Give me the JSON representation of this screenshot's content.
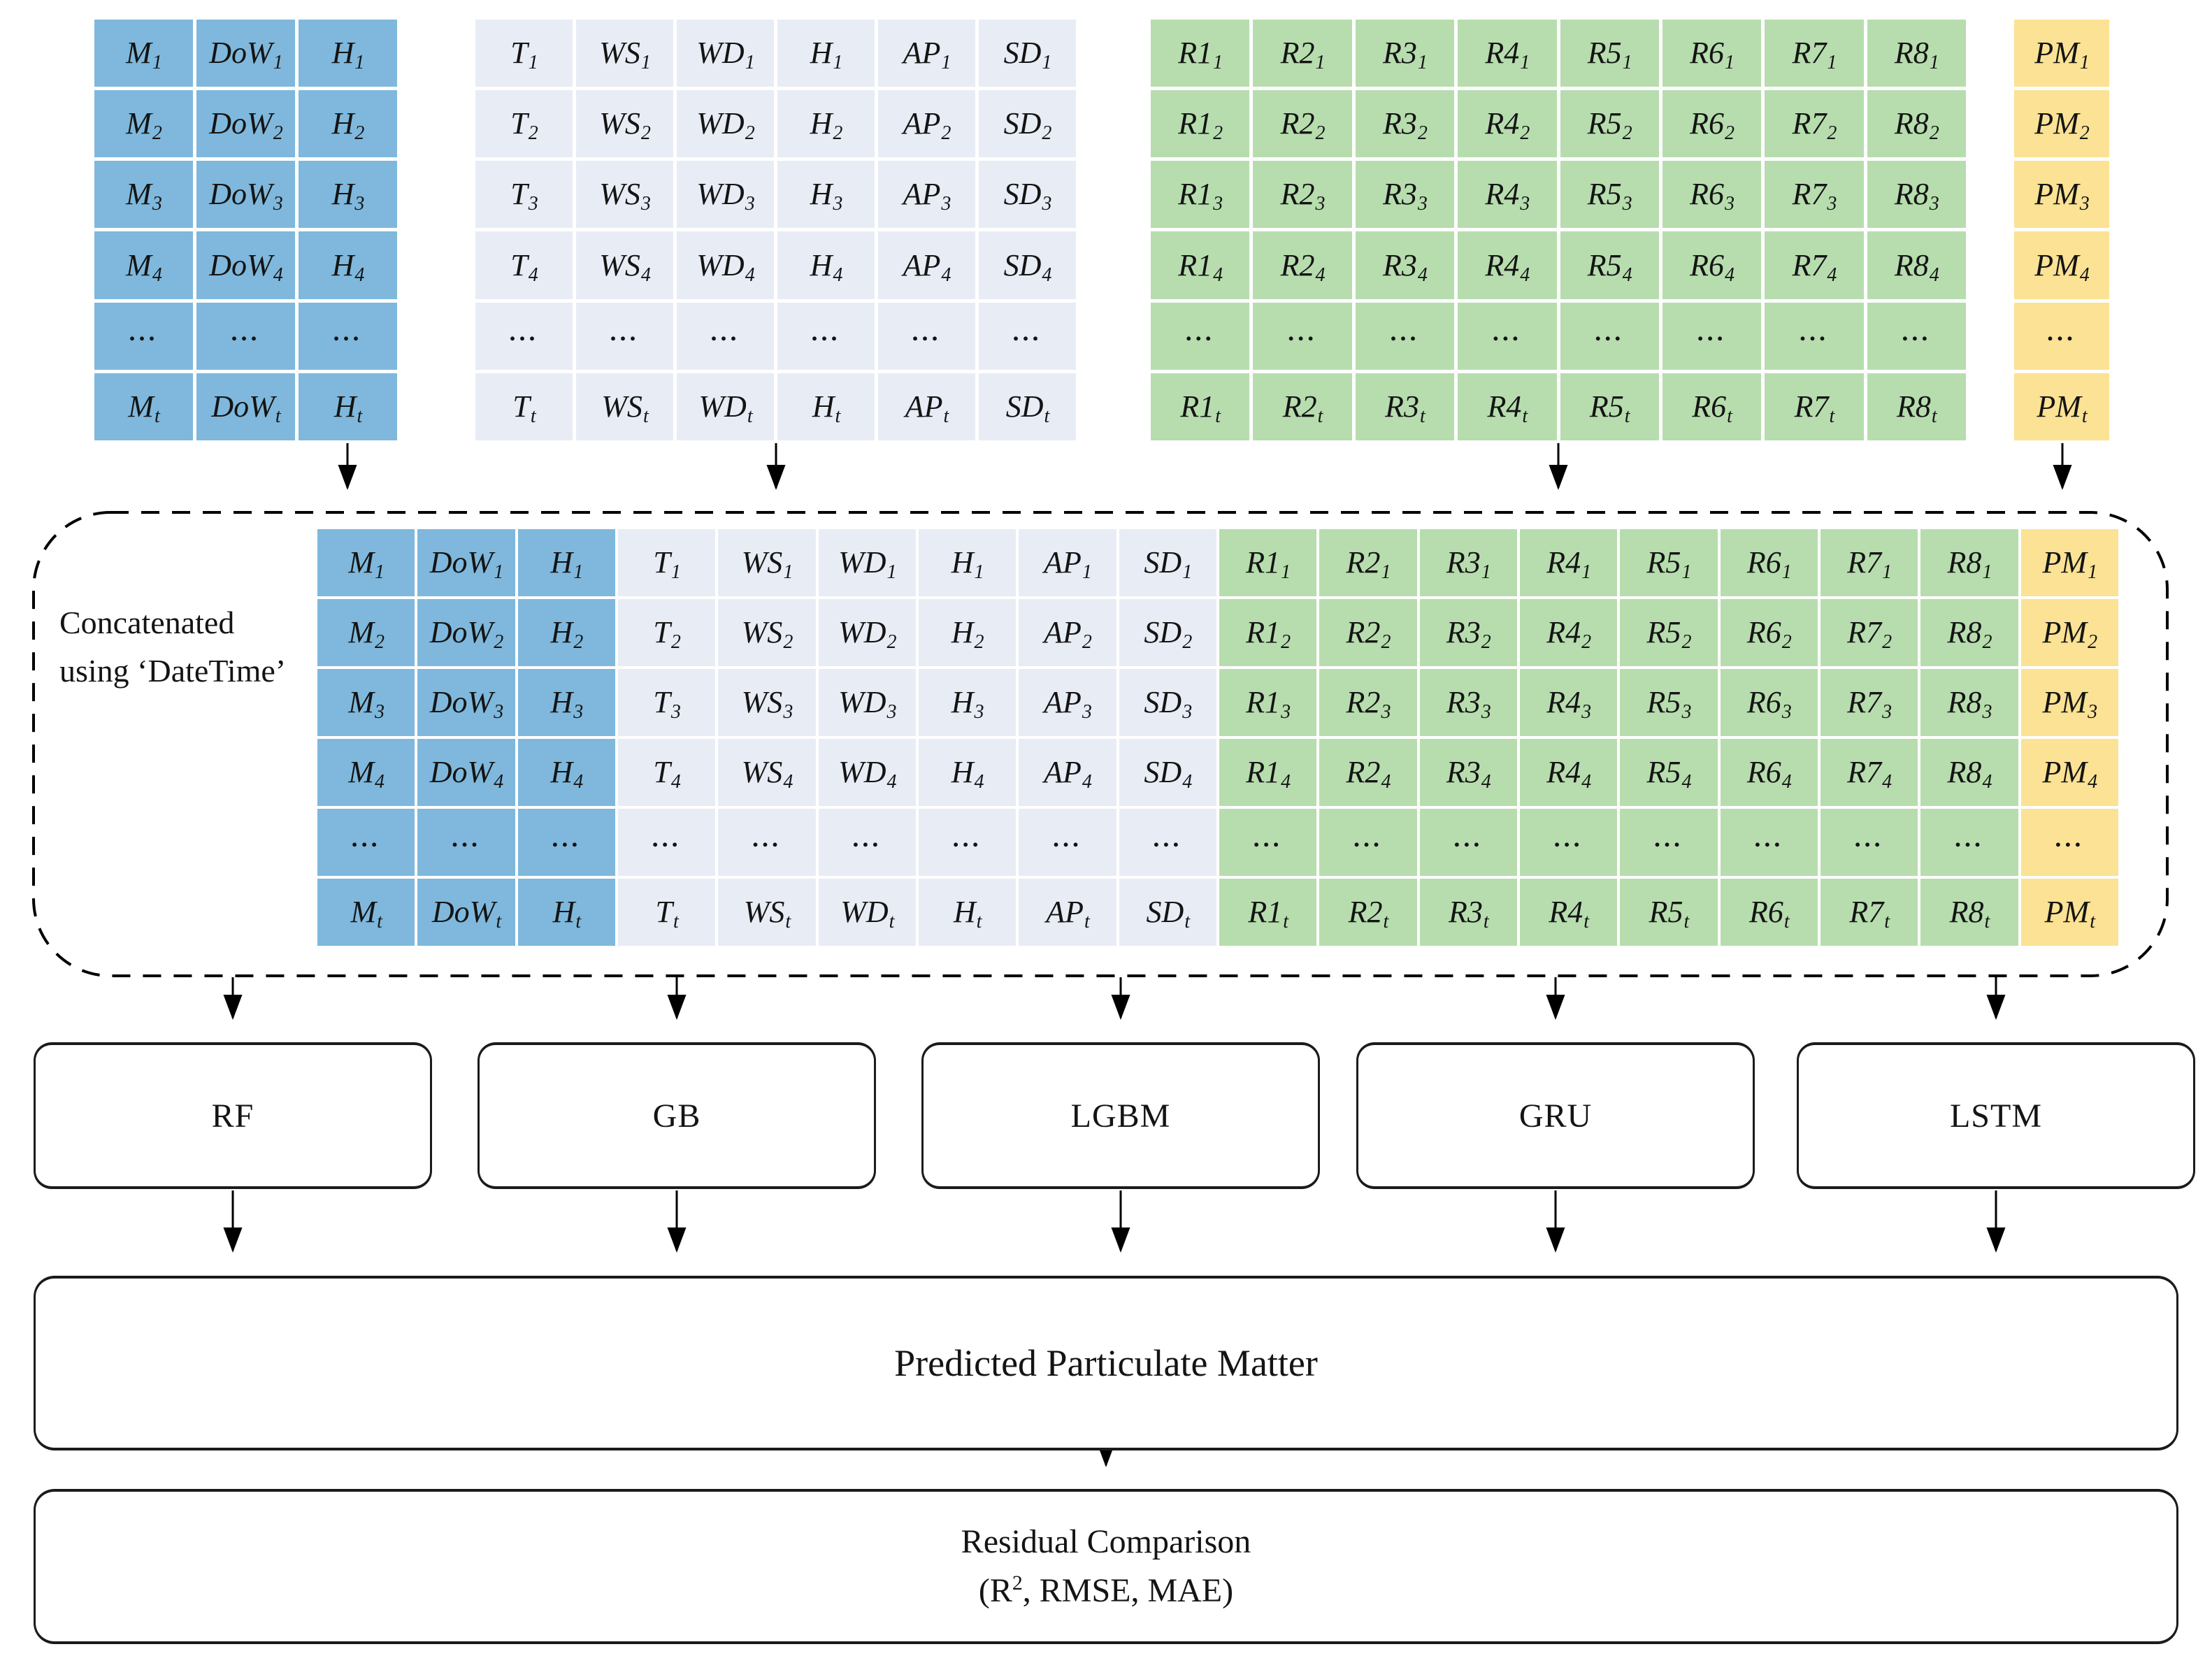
{
  "palette": {
    "blue": "#7FB8DC",
    "lavender": "#E8ECF5",
    "green": "#B7DDAE",
    "yellow": "#FBE294"
  },
  "row_subscripts": [
    "1",
    "2",
    "3",
    "4",
    "...",
    "t"
  ],
  "source_tables": [
    {
      "id": "datetime",
      "color_key": "blue",
      "columns": [
        "M",
        "DoW",
        "H"
      ]
    },
    {
      "id": "weather",
      "color_key": "lavender",
      "columns": [
        "T",
        "WS",
        "WD",
        "H",
        "AP",
        "SD"
      ]
    },
    {
      "id": "road",
      "color_key": "green",
      "columns": [
        "R1",
        "R2",
        "R3",
        "R4",
        "R5",
        "R6",
        "R7",
        "R8"
      ]
    },
    {
      "id": "pm",
      "color_key": "yellow",
      "columns": [
        "PM"
      ]
    }
  ],
  "concat": {
    "label_line1": "Concatenated",
    "label_line2": "using ‘DateTime’"
  },
  "models": [
    {
      "label": "RF"
    },
    {
      "label": "GB"
    },
    {
      "label": "LGBM"
    },
    {
      "label": "GRU"
    },
    {
      "label": "LSTM"
    }
  ],
  "predicted": {
    "label": "Predicted Particulate Matter"
  },
  "residual": {
    "line1": "Residual Comparison",
    "line2_pre": "(R",
    "line2_sup": "2",
    "line2_post": ", RMSE, MAE)"
  }
}
